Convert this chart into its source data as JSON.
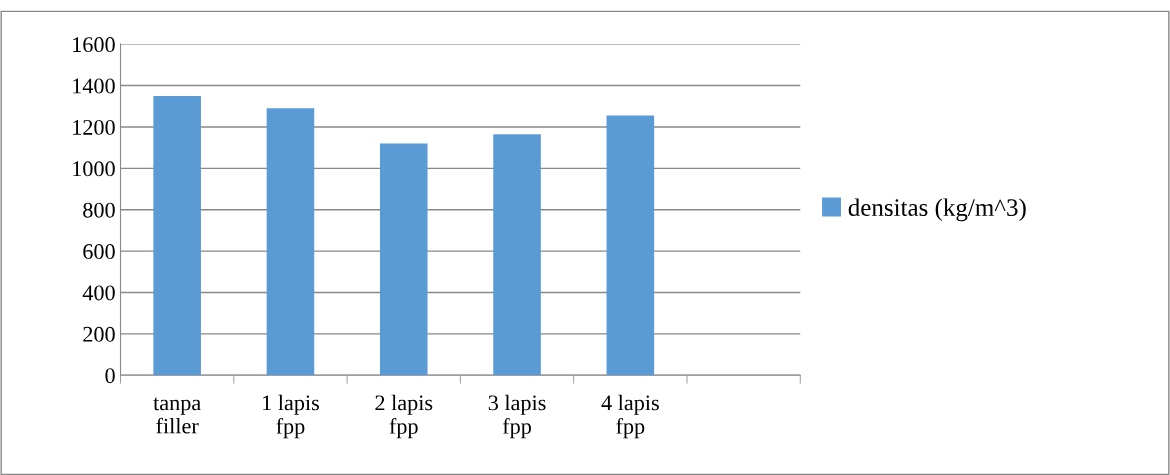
{
  "chart_data": {
    "type": "bar",
    "categories": [
      "tanpa\nfiller",
      "1 lapis\nfpp",
      "2 lapis\nfpp",
      "3 lapis\nfpp",
      "4 lapis\nfpp",
      null
    ],
    "series": [
      {
        "name": "densitas (kg/m^3)",
        "color": "#5b9bd5",
        "values": [
          1350,
          1290,
          1120,
          1165,
          1255,
          null
        ]
      }
    ],
    "ylim": [
      0,
      1600
    ],
    "yticks": [
      0,
      200,
      400,
      600,
      800,
      1000,
      1200,
      1400,
      1600
    ],
    "grid": "y",
    "legend": "right"
  }
}
